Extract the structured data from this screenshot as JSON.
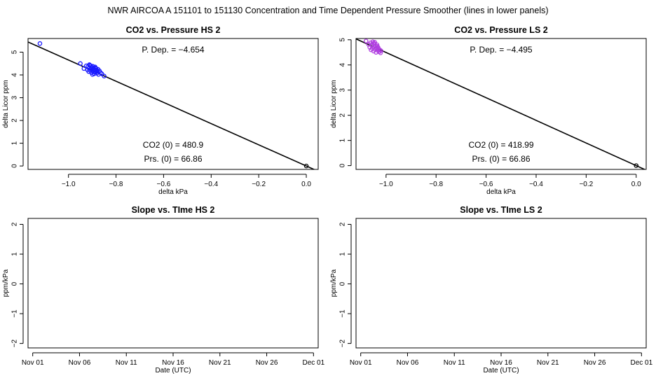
{
  "page_title": "NWR   AIRCOA A   151101 to 151130   Concentration and Time Dependent Pressure Smoother (lines in lower panels)",
  "colors": {
    "hs_points": "#1a1aff",
    "ls_points": "#b040e0",
    "line": "#000000",
    "origin": "#000000"
  },
  "chart_data": [
    {
      "type": "scatter",
      "title": "CO2 vs. Pressure HS 2",
      "xlabel": "delta kPa",
      "ylabel": "delta Licor ppm",
      "xlim": [
        -1.17,
        0.05
      ],
      "ylim": [
        -0.15,
        5.6
      ],
      "xticks": [
        -1.0,
        -0.8,
        -0.6,
        -0.4,
        -0.2,
        0.0
      ],
      "xtick_labels": [
        "−1.0",
        "−0.8",
        "−0.6",
        "−0.4",
        "−0.2",
        "0.0"
      ],
      "yticks": [
        0,
        1,
        2,
        3,
        4,
        5
      ],
      "ytick_labels": [
        "0",
        "1",
        "2",
        "3",
        "4",
        "5"
      ],
      "annotations": {
        "pdep": "P. Dep. =  −4.654",
        "co2_0": "CO2 (0) =  480.9",
        "prs_0": "Prs. (0) =  66.86"
      },
      "fit_line": {
        "slope": -4.654,
        "intercept": 0.0
      },
      "origin_point": [
        0.0,
        0.0
      ],
      "points": [
        [
          -1.12,
          5.38
        ],
        [
          -0.95,
          4.5
        ],
        [
          -0.935,
          4.28
        ],
        [
          -0.925,
          4.4
        ],
        [
          -0.92,
          4.22
        ],
        [
          -0.918,
          4.36
        ],
        [
          -0.915,
          4.15
        ],
        [
          -0.913,
          4.3
        ],
        [
          -0.91,
          4.42
        ],
        [
          -0.908,
          4.2
        ],
        [
          -0.905,
          4.33
        ],
        [
          -0.903,
          4.1
        ],
        [
          -0.9,
          4.25
        ],
        [
          -0.898,
          4.38
        ],
        [
          -0.896,
          4.18
        ],
        [
          -0.894,
          4.3
        ],
        [
          -0.892,
          4.05
        ],
        [
          -0.89,
          4.22
        ],
        [
          -0.888,
          4.35
        ],
        [
          -0.886,
          4.12
        ],
        [
          -0.884,
          4.28
        ],
        [
          -0.882,
          4.2
        ],
        [
          -0.88,
          4.08
        ],
        [
          -0.878,
          4.15
        ],
        [
          -0.876,
          4.25
        ],
        [
          -0.874,
          4.02
        ],
        [
          -0.87,
          4.18
        ],
        [
          -0.865,
          4.1
        ],
        [
          -0.86,
          4.05
        ],
        [
          -0.85,
          3.95
        ],
        [
          -0.912,
          4.45
        ],
        [
          -0.906,
          4.4
        ],
        [
          -0.899,
          4.02
        ],
        [
          -0.893,
          4.14
        ],
        [
          -0.887,
          4.3
        ]
      ]
    },
    {
      "type": "scatter",
      "title": "CO2 vs. Pressure LS 2",
      "xlabel": "delta kPa",
      "ylabel": "delta Licor ppm",
      "xlim": [
        -1.12,
        0.04
      ],
      "ylim": [
        -0.15,
        5.05
      ],
      "xticks": [
        -1.0,
        -0.8,
        -0.6,
        -0.4,
        -0.2,
        0.0
      ],
      "xtick_labels": [
        "−1.0",
        "−0.8",
        "−0.6",
        "−0.4",
        "−0.2",
        "0.0"
      ],
      "yticks": [
        0,
        1,
        2,
        3,
        4,
        5
      ],
      "ytick_labels": [
        "0",
        "1",
        "2",
        "3",
        "4",
        "5"
      ],
      "annotations": {
        "pdep": "P. Dep. =  −4.495",
        "co2_0": "CO2 (0) =  418.99",
        "prs_0": "Prs. (0) =  66.86"
      },
      "fit_line": {
        "slope": -4.495,
        "intercept": 0.0
      },
      "origin_point": [
        0.0,
        0.0
      ],
      "points": [
        [
          -1.08,
          4.95
        ],
        [
          -1.07,
          4.82
        ],
        [
          -1.065,
          4.7
        ],
        [
          -1.062,
          4.88
        ],
        [
          -1.06,
          4.6
        ],
        [
          -1.058,
          4.78
        ],
        [
          -1.055,
          4.66
        ],
        [
          -1.053,
          4.92
        ],
        [
          -1.05,
          4.55
        ],
        [
          -1.048,
          4.72
        ],
        [
          -1.046,
          4.84
        ],
        [
          -1.044,
          4.62
        ],
        [
          -1.042,
          4.75
        ],
        [
          -1.04,
          4.5
        ],
        [
          -1.038,
          4.68
        ],
        [
          -1.036,
          4.8
        ],
        [
          -1.034,
          4.58
        ],
        [
          -1.032,
          4.7
        ],
        [
          -1.03,
          4.64
        ],
        [
          -1.028,
          4.52
        ],
        [
          -1.025,
          4.6
        ],
        [
          -1.022,
          4.48
        ],
        [
          -1.02,
          4.56
        ],
        [
          -1.05,
          4.86
        ],
        [
          -1.045,
          4.9
        ],
        [
          -1.035,
          4.74
        ]
      ]
    },
    {
      "type": "line",
      "title": "Slope vs. TIme HS 2",
      "xlabel": "Date (UTC)",
      "ylabel": "ppm/kPa",
      "xlim": [
        -0.5,
        30.5
      ],
      "ylim": [
        -2.15,
        2.2
      ],
      "xticks": [
        0,
        5,
        10,
        15,
        20,
        25,
        30
      ],
      "xtick_labels": [
        "Nov 01",
        "Nov 06",
        "Nov 11",
        "Nov 16",
        "Nov 21",
        "Nov 26",
        "Dec 01"
      ],
      "yticks": [
        -2,
        -1,
        0,
        1,
        2
      ],
      "ytick_labels": [
        "−2",
        "−1",
        "0",
        "1",
        "2"
      ],
      "series": []
    },
    {
      "type": "line",
      "title": "Slope vs. TIme LS 2",
      "xlabel": "Date (UTC)",
      "ylabel": "ppm/kPa",
      "xlim": [
        -0.5,
        30.5
      ],
      "ylim": [
        -2.15,
        2.2
      ],
      "xticks": [
        0,
        5,
        10,
        15,
        20,
        25,
        30
      ],
      "xtick_labels": [
        "Nov 01",
        "Nov 06",
        "Nov 11",
        "Nov 16",
        "Nov 21",
        "Nov 26",
        "Dec 01"
      ],
      "yticks": [
        -2,
        -1,
        0,
        1,
        2
      ],
      "ytick_labels": [
        "−2",
        "−1",
        "0",
        "1",
        "2"
      ],
      "series": []
    }
  ]
}
